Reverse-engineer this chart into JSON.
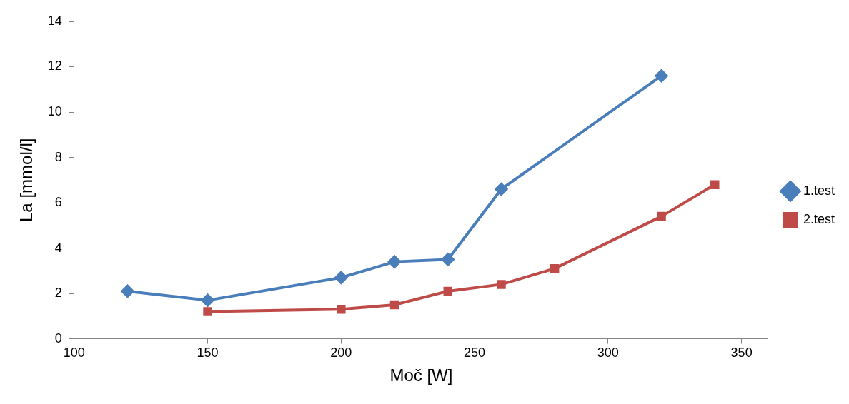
{
  "chart_data": {
    "type": "line",
    "xlabel": "Moč [W]",
    "ylabel": "La [mmol/l]",
    "xlim": [
      100,
      360
    ],
    "xticks": [
      100,
      150,
      200,
      250,
      300,
      350
    ],
    "ylim": [
      0,
      14
    ],
    "yticks": [
      0,
      2,
      4,
      6,
      8,
      10,
      12,
      14
    ],
    "grid": false,
    "legend": "right",
    "line_style": "solid",
    "series": [
      {
        "name": "1.test",
        "color": "#4a7ebb",
        "marker": "diamond",
        "x": [
          120,
          150,
          200,
          220,
          240,
          260,
          320
        ],
        "values": [
          2.1,
          1.7,
          2.7,
          3.4,
          3.5,
          6.6,
          11.6
        ]
      },
      {
        "name": "2.test",
        "color": "#be4b48",
        "marker": "square",
        "x": [
          150,
          200,
          220,
          240,
          260,
          280,
          320,
          340
        ],
        "values": [
          1.2,
          1.3,
          1.5,
          2.1,
          2.4,
          3.1,
          5.4,
          6.8
        ]
      }
    ]
  }
}
